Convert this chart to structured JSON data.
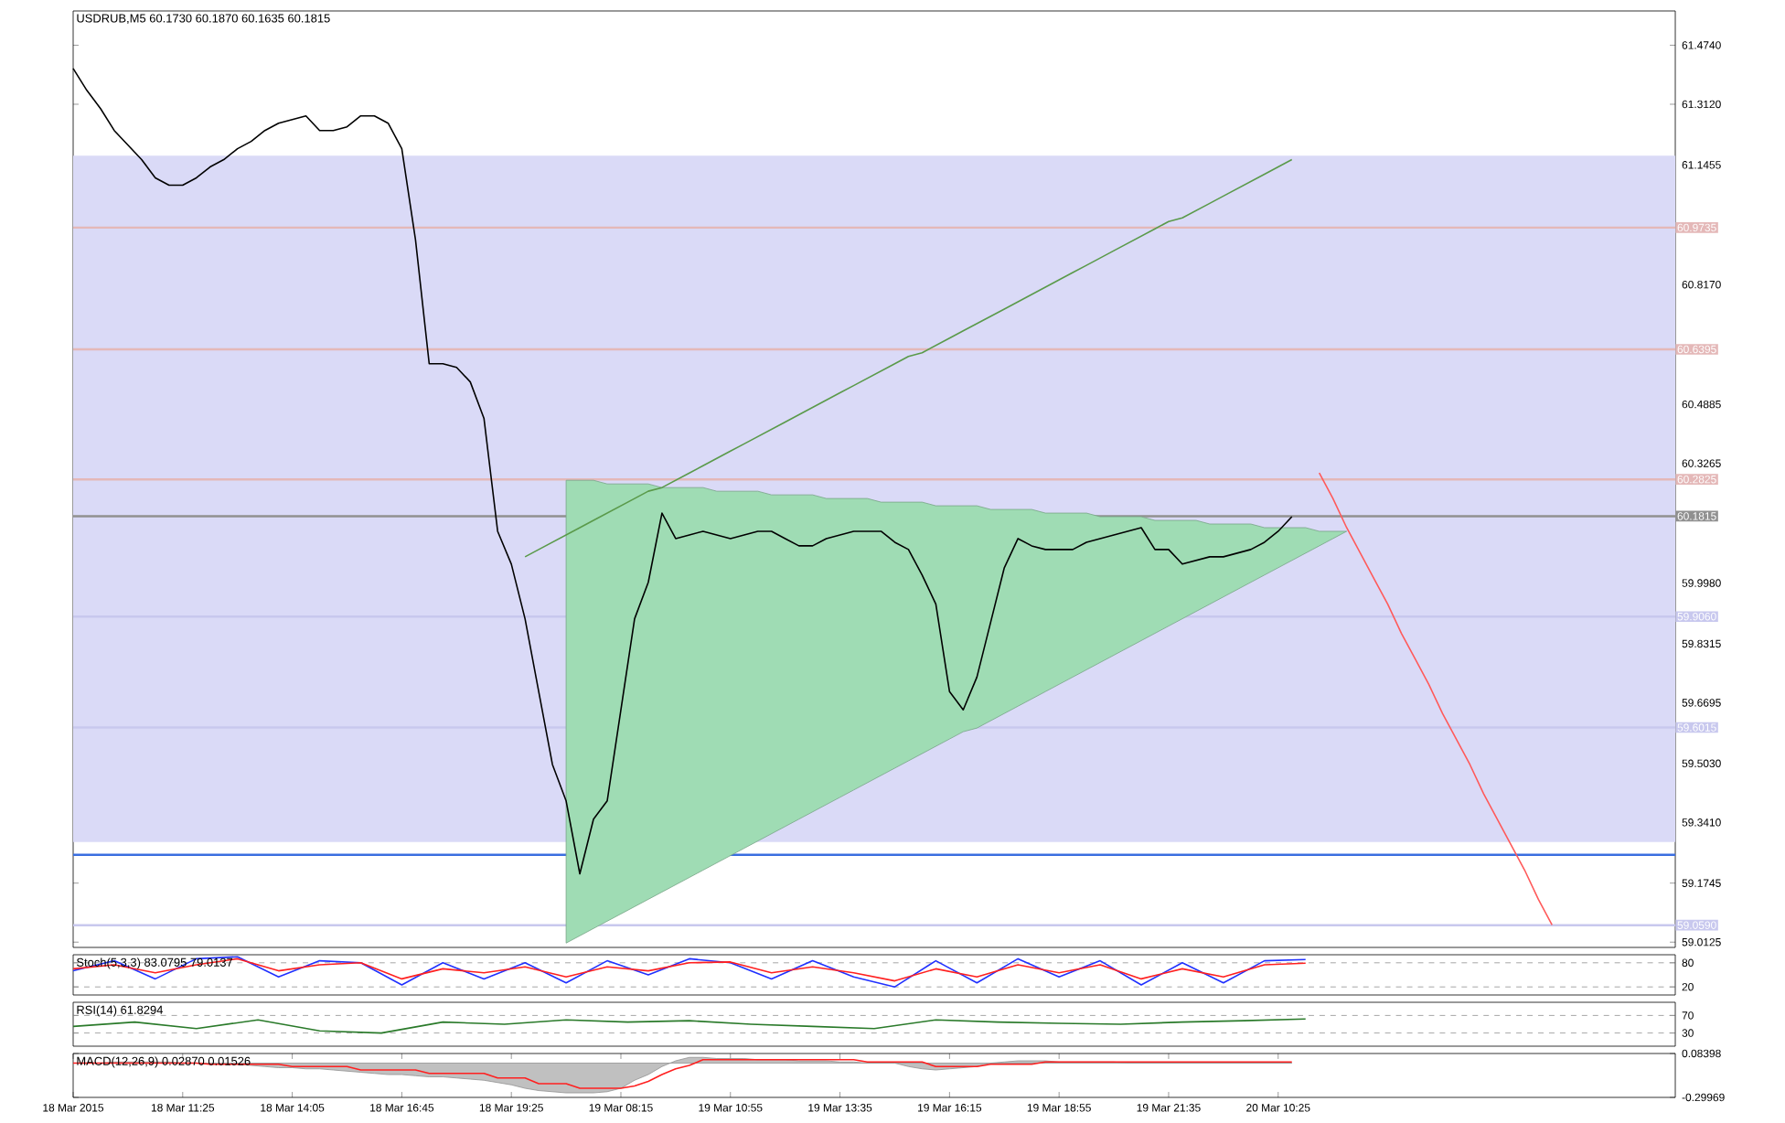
{
  "chart_data": [
    {
      "type": "line",
      "title": "USDRUB,M5  60.1730 60.1870 60.1635 60.1815",
      "ylim": [
        58.998,
        61.568
      ],
      "tick_labels": "y",
      "categories": [
        null,
        null,
        null,
        null,
        null,
        null,
        null,
        null,
        null,
        null,
        null,
        null,
        null,
        null,
        null,
        null,
        null,
        null,
        null,
        null,
        null,
        null,
        null,
        null,
        null,
        null,
        null,
        null,
        null,
        null,
        null,
        null,
        null,
        null,
        null,
        null,
        null,
        null,
        null,
        null,
        null,
        null,
        null,
        null,
        null,
        null,
        null,
        null,
        null,
        null,
        null,
        null,
        null,
        null,
        null,
        null,
        null,
        null,
        null,
        null,
        null,
        null,
        null,
        null,
        null,
        null,
        null,
        null,
        null,
        null,
        null,
        null,
        null,
        null,
        null,
        null,
        null,
        null,
        null,
        null,
        null,
        null,
        null,
        null,
        null,
        null,
        null,
        null,
        null,
        null,
        null,
        null,
        null,
        null,
        null,
        null,
        null,
        null,
        null,
        null,
        null,
        null,
        null,
        null,
        null,
        null,
        null,
        null,
        null,
        null,
        null,
        null,
        null,
        null,
        null,
        null,
        null,
        null
      ],
      "yticks": [
        {
          "value": 61.474,
          "label": "61.4740"
        },
        {
          "value": 61.312,
          "label": "61.3120"
        },
        {
          "value": 61.1455,
          "label": "61.1455"
        },
        {
          "value": 60.817,
          "label": "60.8170"
        },
        {
          "value": 60.4885,
          "label": "60.4885"
        },
        {
          "value": 60.3265,
          "label": "60.3265"
        },
        {
          "value": 59.998,
          "label": "59.9980"
        },
        {
          "value": 59.8315,
          "label": "59.8315"
        },
        {
          "value": 59.6695,
          "label": "59.6695"
        },
        {
          "value": 59.503,
          "label": "59.5030"
        },
        {
          "value": 59.341,
          "label": "59.3410"
        },
        {
          "value": 59.1745,
          "label": "59.1745"
        },
        {
          "value": 59.0125,
          "label": "59.0125"
        }
      ],
      "bands": [
        {
          "axis": "y",
          "from": 59.287,
          "to": 61.171,
          "color": "#dadaf7"
        }
      ],
      "ref_lines": [
        {
          "axis": "y",
          "value": 60.9735,
          "label": "60.9735",
          "color": "#e4b8b8"
        },
        {
          "axis": "y",
          "value": 60.6395,
          "label": "60.6395",
          "color": "#e4b8b8"
        },
        {
          "axis": "y",
          "value": 60.2825,
          "label": "60.2825",
          "color": "#e4b8b8"
        },
        {
          "axis": "y",
          "value": 59.906,
          "label": "59.9060",
          "color": "#c8c8ee"
        },
        {
          "axis": "y",
          "value": 59.6015,
          "label": "59.6015",
          "color": "#c8c8ee"
        },
        {
          "axis": "y",
          "value": 59.059,
          "label": "59.0590",
          "color": "#c8c8ee"
        },
        {
          "axis": "y",
          "value": 59.252,
          "color": "#3a6ee0"
        },
        {
          "axis": "y",
          "value": 60.1815,
          "label": "60.1815",
          "color": "#909090"
        }
      ],
      "series": [
        {
          "type": "area",
          "color": "#9fdcb4",
          "values": [
            null,
            null,
            null,
            null,
            null,
            null,
            null,
            null,
            null,
            null,
            null,
            null,
            null,
            null,
            null,
            null,
            null,
            null,
            null,
            null,
            null,
            null,
            null,
            null,
            null,
            null,
            null,
            null,
            null,
            null,
            null,
            null,
            null,
            null,
            null,
            null,
            null,
            null,
            null,
            null,
            null,
            null,
            null,
            null,
            null,
            null,
            null,
            null,
            null,
            null,
            null,
            null,
            null,
            null,
            null,
            null,
            null,
            null,
            null,
            null,
            null,
            null,
            null,
            null,
            null,
            null,
            null,
            null,
            null,
            null,
            null,
            null,
            null,
            null,
            null,
            null,
            null,
            null,
            null,
            null,
            null,
            null,
            null,
            null,
            null,
            null,
            null,
            null,
            null,
            null,
            null,
            null,
            null,
            null,
            null,
            null,
            null,
            null,
            null,
            null,
            null,
            null,
            null,
            null,
            null,
            null,
            null,
            null,
            null,
            null,
            null,
            null,
            null,
            null,
            null,
            null,
            null,
            null
          ],
          "upper": [
            null,
            null,
            null,
            null,
            null,
            null,
            null,
            null,
            null,
            null,
            null,
            null,
            null,
            null,
            null,
            null,
            null,
            null,
            null,
            null,
            null,
            null,
            null,
            null,
            null,
            null,
            null,
            null,
            null,
            null,
            null,
            null,
            null,
            null,
            null,
            null,
            60.28,
            60.28,
            60.28,
            60.27,
            60.27,
            60.27,
            60.27,
            60.26,
            60.26,
            60.26,
            60.26,
            60.25,
            60.25,
            60.25,
            60.25,
            60.24,
            60.24,
            60.24,
            60.24,
            60.23,
            60.23,
            60.23,
            60.23,
            60.22,
            60.22,
            60.22,
            60.22,
            60.21,
            60.21,
            60.21,
            60.21,
            60.2,
            60.2,
            60.2,
            60.2,
            60.19,
            60.19,
            60.19,
            60.19,
            60.18,
            60.18,
            60.18,
            60.18,
            60.17,
            60.17,
            60.17,
            60.17,
            60.16,
            60.16,
            60.16,
            60.16,
            60.15,
            60.15,
            60.15,
            60.15,
            60.14,
            60.14,
            60.14,
            null,
            null,
            null,
            null,
            null,
            null,
            null,
            null,
            null,
            null,
            null,
            null,
            null,
            null,
            null,
            null,
            null,
            null,
            null,
            null,
            null,
            null,
            null,
            null
          ],
          "lower": [
            null,
            null,
            null,
            null,
            null,
            null,
            null,
            null,
            null,
            null,
            null,
            null,
            null,
            null,
            null,
            null,
            null,
            null,
            null,
            null,
            null,
            null,
            null,
            null,
            null,
            null,
            null,
            null,
            null,
            null,
            null,
            null,
            null,
            null,
            null,
            null,
            59.01,
            59.03,
            59.05,
            59.07,
            59.09,
            59.11,
            59.13,
            59.15,
            59.17,
            59.19,
            59.21,
            59.23,
            59.25,
            59.27,
            59.29,
            59.31,
            59.33,
            59.35,
            59.37,
            59.39,
            59.41,
            59.43,
            59.45,
            59.47,
            59.49,
            59.51,
            59.53,
            59.55,
            59.57,
            59.59,
            59.6,
            59.62,
            59.64,
            59.66,
            59.68,
            59.7,
            59.72,
            59.74,
            59.76,
            59.78,
            59.8,
            59.82,
            59.84,
            59.86,
            59.88,
            59.9,
            59.92,
            59.94,
            59.96,
            59.98,
            60.0,
            60.02,
            60.04,
            60.06,
            60.08,
            60.1,
            60.12,
            60.14,
            null,
            null,
            null,
            null,
            null,
            null,
            null,
            null,
            null,
            null,
            null,
            null,
            null,
            null,
            null,
            null,
            null,
            null,
            null,
            null,
            null,
            null,
            null,
            null
          ]
        },
        {
          "type": "line",
          "color": "#5a9a4a",
          "values": [
            null,
            null,
            null,
            null,
            null,
            null,
            null,
            null,
            null,
            null,
            null,
            null,
            null,
            null,
            null,
            null,
            null,
            null,
            null,
            null,
            null,
            null,
            null,
            null,
            null,
            null,
            null,
            null,
            null,
            null,
            null,
            null,
            null,
            60.07,
            60.09,
            60.11,
            60.13,
            60.15,
            60.17,
            60.19,
            60.21,
            60.23,
            60.25,
            60.26,
            60.28,
            60.3,
            60.32,
            60.34,
            60.36,
            60.38,
            60.4,
            60.42,
            60.44,
            60.46,
            60.48,
            60.5,
            60.52,
            60.54,
            60.56,
            60.58,
            60.6,
            60.62,
            60.63,
            60.65,
            60.67,
            60.69,
            60.71,
            60.73,
            60.75,
            60.77,
            60.79,
            60.81,
            60.83,
            60.85,
            60.87,
            60.89,
            60.91,
            60.93,
            60.95,
            60.97,
            60.99,
            61.0,
            61.02,
            61.04,
            61.06,
            61.08,
            61.1,
            61.12,
            61.14,
            61.16,
            null,
            null,
            null,
            null,
            null,
            null,
            null,
            null,
            null,
            null,
            null,
            null,
            null,
            null,
            null,
            null,
            null,
            null,
            null,
            null,
            null,
            null,
            null,
            null,
            null,
            null,
            null,
            null
          ]
        },
        {
          "type": "line",
          "color": "#000000",
          "values": [
            61.41,
            61.35,
            61.3,
            61.24,
            61.2,
            61.16,
            61.11,
            61.09,
            61.09,
            61.11,
            61.14,
            61.16,
            61.19,
            61.21,
            61.24,
            61.26,
            61.27,
            61.28,
            61.24,
            61.24,
            61.25,
            61.28,
            61.28,
            61.26,
            61.19,
            60.94,
            60.6,
            60.6,
            60.59,
            60.55,
            60.45,
            60.14,
            60.05,
            59.9,
            59.7,
            59.5,
            59.4,
            59.2,
            59.35,
            59.4,
            59.65,
            59.9,
            60.0,
            60.19,
            60.12,
            60.13,
            60.14,
            60.13,
            60.12,
            60.13,
            60.14,
            60.14,
            60.12,
            60.1,
            60.1,
            60.12,
            60.13,
            60.14,
            60.14,
            60.14,
            60.11,
            60.09,
            60.02,
            59.94,
            59.7,
            59.65,
            59.74,
            59.89,
            60.04,
            60.12,
            60.1,
            60.09,
            60.09,
            60.09,
            60.11,
            60.12,
            60.13,
            60.14,
            60.15,
            60.09,
            60.09,
            60.05,
            60.06,
            60.07,
            60.07,
            60.08,
            60.09,
            60.11,
            60.14,
            60.18,
            null,
            null,
            null,
            null,
            null,
            null,
            null,
            null,
            null,
            null,
            null,
            null,
            null,
            null,
            null,
            null,
            null,
            null,
            null,
            null,
            null,
            null,
            null,
            null,
            null,
            null,
            null,
            null
          ]
        },
        {
          "type": "line",
          "color": "#ff5a5a",
          "values": [
            null,
            null,
            null,
            null,
            null,
            null,
            null,
            null,
            null,
            null,
            null,
            null,
            null,
            null,
            null,
            null,
            null,
            null,
            null,
            null,
            null,
            null,
            null,
            null,
            null,
            null,
            null,
            null,
            null,
            null,
            null,
            null,
            null,
            null,
            null,
            null,
            null,
            null,
            null,
            null,
            null,
            null,
            null,
            null,
            null,
            null,
            null,
            null,
            null,
            null,
            null,
            null,
            null,
            null,
            null,
            null,
            null,
            null,
            null,
            null,
            null,
            null,
            null,
            null,
            null,
            null,
            null,
            null,
            null,
            null,
            null,
            null,
            null,
            null,
            null,
            null,
            null,
            null,
            null,
            null,
            null,
            null,
            null,
            null,
            null,
            null,
            null,
            null,
            null,
            null,
            null,
            60.3,
            60.23,
            60.15,
            60.08,
            60.01,
            59.94,
            59.86,
            59.79,
            59.72,
            59.64,
            59.57,
            59.5,
            59.42,
            59.35,
            59.28,
            59.21,
            59.13,
            59.06,
            null,
            null,
            null,
            null,
            null,
            null,
            null,
            null,
            null
          ]
        }
      ]
    },
    {
      "type": "line",
      "title": "Stoch(5,3,3) 83.0795 79.0137",
      "ylim": [
        0,
        100
      ],
      "yticks": [
        20,
        80
      ],
      "tick_labels": "y",
      "categories": [
        null,
        null,
        null,
        null,
        null,
        null,
        null,
        null,
        null,
        null,
        null,
        null,
        null,
        null,
        null,
        null,
        null,
        null,
        null,
        null,
        null,
        null,
        null,
        null,
        null,
        null,
        null,
        null,
        null,
        null,
        null,
        null,
        null,
        null,
        null,
        null,
        null,
        null,
        null,
        null
      ],
      "ref_lines": [
        {
          "axis": "y",
          "value": 80,
          "color": "#909090",
          "line_style": "dashed"
        },
        {
          "axis": "y",
          "value": 20,
          "color": "#909090",
          "line_style": "dashed"
        }
      ],
      "series": [
        {
          "type": "line",
          "color": "#2030ff",
          "values": [
            60,
            85,
            40,
            90,
            95,
            45,
            85,
            80,
            25,
            80,
            40,
            80,
            30,
            85,
            50,
            90,
            80,
            40,
            85,
            45,
            20,
            85,
            30,
            90,
            45,
            85,
            25,
            80,
            30,
            85,
            88,
            null,
            null,
            null,
            null,
            null,
            null,
            null,
            null,
            null
          ]
        },
        {
          "type": "line",
          "color": "#ff2020",
          "values": [
            65,
            75,
            55,
            75,
            90,
            60,
            75,
            80,
            40,
            65,
            55,
            70,
            45,
            70,
            60,
            80,
            82,
            55,
            70,
            55,
            35,
            65,
            45,
            75,
            55,
            75,
            40,
            65,
            45,
            75,
            79,
            null,
            null,
            null,
            null,
            null,
            null,
            null,
            null,
            null
          ]
        }
      ]
    },
    {
      "type": "line",
      "title": "RSI(14) 61.8294",
      "ylim": [
        0,
        100
      ],
      "yticks": [
        30,
        70
      ],
      "tick_labels": "y",
      "categories": [
        null,
        null,
        null,
        null,
        null,
        null,
        null,
        null,
        null,
        null,
        null,
        null,
        null,
        null,
        null,
        null,
        null,
        null,
        null,
        null,
        null,
        null,
        null,
        null,
        null,
        null,
        null
      ],
      "ref_lines": [
        {
          "axis": "y",
          "value": 70,
          "color": "#909090",
          "line_style": "dashed"
        },
        {
          "axis": "y",
          "value": 30,
          "color": "#909090",
          "line_style": "dashed"
        }
      ],
      "series": [
        {
          "type": "line",
          "color": "#2a7a2a",
          "values": [
            45,
            55,
            40,
            60,
            35,
            30,
            55,
            50,
            60,
            55,
            58,
            50,
            45,
            40,
            60,
            55,
            52,
            50,
            55,
            58,
            62,
            null,
            null,
            null,
            null,
            null,
            null
          ]
        }
      ]
    },
    {
      "type": "line",
      "title": "MACD(12,26,9) 0.02870 0.01526",
      "ylim": [
        -0.29969,
        0.08398
      ],
      "yticks": [
        -0.29969,
        0.08398
      ],
      "categories": [
        "18 Mar 2015",
        null,
        null,
        null,
        null,
        null,
        null,
        null,
        "18 Mar 11:25",
        null,
        null,
        null,
        null,
        null,
        null,
        null,
        "18 Mar 14:05",
        null,
        null,
        null,
        null,
        null,
        null,
        null,
        "18 Mar 16:45",
        null,
        null,
        null,
        null,
        null,
        null,
        null,
        "18 Mar 19:25",
        null,
        null,
        null,
        null,
        null,
        null,
        null,
        "19 Mar 08:15",
        null,
        null,
        null,
        null,
        null,
        null,
        null,
        "19 Mar 10:55",
        null,
        null,
        null,
        null,
        null,
        null,
        null,
        "19 Mar 13:35",
        null,
        null,
        null,
        null,
        null,
        null,
        null,
        "19 Mar 16:15",
        null,
        null,
        null,
        null,
        null,
        null,
        null,
        "19 Mar 18:55",
        null,
        null,
        null,
        null,
        null,
        null,
        null,
        "19 Mar 21:35",
        null,
        null,
        null,
        null,
        null,
        null,
        null,
        "20 Mar 10:25",
        null,
        null,
        null,
        null,
        null,
        null,
        null,
        null,
        null,
        null,
        null,
        null,
        null,
        null,
        null,
        null,
        null,
        null,
        null,
        null,
        null,
        null,
        null,
        null,
        null,
        null,
        null,
        null,
        null
      ],
      "series": [
        {
          "type": "area",
          "color": "#c0c0c0",
          "values": [
            0,
            0,
            0,
            0.01,
            0.01,
            0.01,
            0.01,
            0.01,
            0,
            0,
            -0.01,
            -0.01,
            -0.01,
            -0.02,
            -0.03,
            -0.04,
            -0.04,
            -0.05,
            -0.05,
            -0.06,
            -0.07,
            -0.08,
            -0.09,
            -0.1,
            -0.1,
            -0.11,
            -0.12,
            -0.12,
            -0.13,
            -0.14,
            -0.15,
            -0.17,
            -0.19,
            -0.22,
            -0.24,
            -0.25,
            -0.26,
            -0.26,
            -0.26,
            -0.25,
            -0.22,
            -0.15,
            -0.1,
            -0.03,
            0.02,
            0.05,
            0.05,
            0.04,
            0.04,
            0.04,
            0.03,
            0.03,
            0.03,
            0.02,
            0.02,
            0.02,
            0.01,
            0.01,
            0,
            0,
            0,
            -0.03,
            -0.05,
            -0.06,
            -0.05,
            -0.04,
            -0.03,
            0,
            0.01,
            0.02,
            0.02,
            0.02,
            0.01,
            0.01,
            0.01,
            0.01,
            0.01,
            0,
            0,
            0,
            0,
            0,
            0,
            0,
            0,
            0,
            0,
            0,
            0,
            0,
            null,
            null,
            null,
            null,
            null,
            null,
            null,
            null,
            null,
            null,
            null,
            null,
            null,
            null,
            null,
            null,
            null,
            null,
            null,
            null,
            null,
            null,
            null,
            null,
            null,
            null,
            null,
            null
          ]
        },
        {
          "type": "line",
          "color": "#ff2020",
          "values": [
            0,
            0,
            0,
            0,
            0,
            0,
            0,
            0,
            0,
            0,
            -0.01,
            -0.01,
            -0.01,
            -0.01,
            -0.01,
            -0.01,
            -0.03,
            -0.03,
            -0.03,
            -0.03,
            -0.03,
            -0.06,
            -0.06,
            -0.06,
            -0.06,
            -0.06,
            -0.09,
            -0.09,
            -0.09,
            -0.09,
            -0.09,
            -0.13,
            -0.13,
            -0.13,
            -0.18,
            -0.18,
            -0.18,
            -0.22,
            -0.22,
            -0.22,
            -0.22,
            -0.2,
            -0.16,
            -0.1,
            -0.05,
            -0.02,
            0.03,
            0.03,
            0.03,
            0.03,
            0.03,
            0.03,
            0.03,
            0.03,
            0.03,
            0.03,
            0.03,
            0.03,
            0.01,
            0.01,
            0.01,
            0.01,
            0.01,
            -0.03,
            -0.03,
            -0.03,
            -0.03,
            -0.01,
            -0.01,
            -0.01,
            -0.01,
            0.01,
            0.01,
            0.01,
            0.01,
            0.01,
            0.01,
            0.01,
            0.01,
            0.01,
            0.01,
            0.01,
            0.01,
            0.01,
            0.01,
            0.01,
            0.01,
            0.01,
            0.01,
            0.01,
            null,
            null,
            null,
            null,
            null,
            null,
            null,
            null,
            null,
            null,
            null,
            null,
            null,
            null,
            null,
            null,
            null,
            null,
            null,
            null,
            null,
            null,
            null,
            null,
            null,
            null,
            null,
            null
          ]
        }
      ]
    }
  ]
}
